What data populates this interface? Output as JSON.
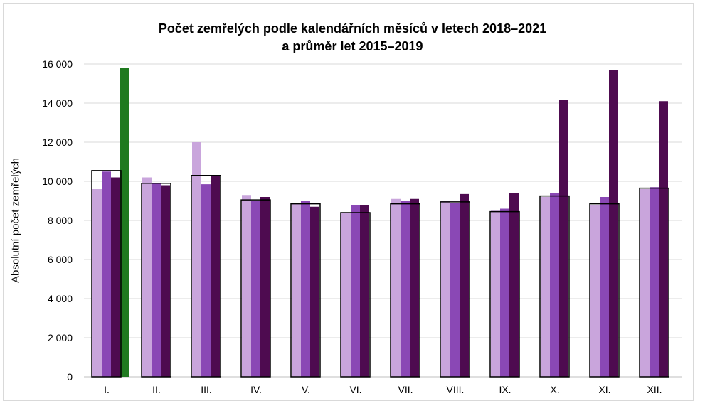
{
  "chart_data": {
    "type": "bar",
    "title": "Počet zemřelých podle kalendářních měsíců v letech 2018–2021",
    "subtitle": "a průměr let 2015–2019",
    "ylabel": "Absolutní počet zemřelých",
    "ylim": [
      0,
      16000
    ],
    "yticks": [
      "0",
      "2 000",
      "4 000",
      "6 000",
      "8 000",
      "10 000",
      "12 000",
      "14 000",
      "16 000"
    ],
    "ytick_values": [
      0,
      2000,
      4000,
      6000,
      8000,
      10000,
      12000,
      14000,
      16000
    ],
    "categories": [
      "I.",
      "II.",
      "III.",
      "IV.",
      "V.",
      "VI.",
      "VII.",
      "VIII.",
      "IX.",
      "X.",
      "XI.",
      "XII."
    ],
    "series": [
      {
        "values": [
          9600,
          10200,
          12000,
          9300,
          8900,
          8400,
          9100,
          9000,
          8500,
          9200,
          8800,
          9600
        ],
        "color": "#c9a5dc"
      },
      {
        "values": [
          10500,
          9900,
          9850,
          9000,
          9000,
          8800,
          9000,
          8900,
          8600,
          9400,
          9200,
          9700
        ],
        "color": "#8a48b5"
      },
      {
        "values": [
          10200,
          9800,
          10300,
          9200,
          8700,
          8800,
          9100,
          9350,
          9400,
          14150,
          15700,
          14100
        ],
        "color": "#4e0b50"
      },
      {
        "values": [
          15800,
          null,
          null,
          null,
          null,
          null,
          null,
          null,
          null,
          null,
          null,
          null
        ],
        "color": "#1f7a1f"
      }
    ],
    "average_outline": {
      "values": [
        10550,
        9900,
        10300,
        9050,
        8850,
        8400,
        8850,
        8950,
        8450,
        9250,
        8850,
        9650
      ],
      "color": "#000000"
    },
    "grid": true
  }
}
